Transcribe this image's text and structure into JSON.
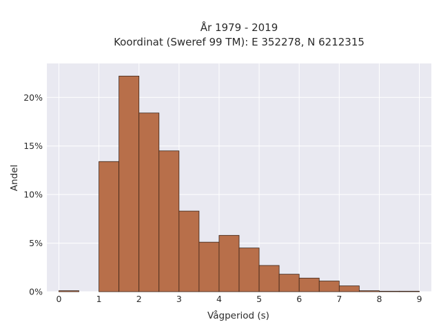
{
  "chart_data": {
    "type": "bar",
    "title_line1": "År 1979 - 2019",
    "title_line2": "Koordinat (Sweref 99 TM): E 352278, N 6212315",
    "xlabel": "Vågperiod (s)",
    "ylabel": "Andel",
    "xlim": [
      -0.3,
      9.3
    ],
    "ylim": [
      0,
      23.5
    ],
    "x_ticks": [
      0,
      1,
      2,
      3,
      4,
      5,
      6,
      7,
      8,
      9
    ],
    "x_tick_labels": [
      "0",
      "1",
      "2",
      "3",
      "4",
      "5",
      "6",
      "7",
      "8",
      "9"
    ],
    "y_ticks": [
      0,
      5,
      10,
      15,
      20
    ],
    "y_tick_labels": [
      "0%",
      "5%",
      "10%",
      "15%",
      "20%"
    ],
    "grid": true,
    "bar_color": "#b86f4a",
    "background_color": "#e9e9f1",
    "bins": [
      {
        "x0": 0.0,
        "x1": 0.5,
        "value": 0.1
      },
      {
        "x0": 1.0,
        "x1": 1.5,
        "value": 13.4
      },
      {
        "x0": 1.5,
        "x1": 2.0,
        "value": 22.2
      },
      {
        "x0": 2.0,
        "x1": 2.5,
        "value": 18.4
      },
      {
        "x0": 2.5,
        "x1": 3.0,
        "value": 14.5
      },
      {
        "x0": 3.0,
        "x1": 3.5,
        "value": 8.3
      },
      {
        "x0": 3.5,
        "x1": 4.0,
        "value": 5.1
      },
      {
        "x0": 4.0,
        "x1": 4.5,
        "value": 5.8
      },
      {
        "x0": 4.5,
        "x1": 5.0,
        "value": 4.5
      },
      {
        "x0": 5.0,
        "x1": 5.5,
        "value": 2.7
      },
      {
        "x0": 5.5,
        "x1": 6.0,
        "value": 1.8
      },
      {
        "x0": 6.0,
        "x1": 6.5,
        "value": 1.4
      },
      {
        "x0": 6.5,
        "x1": 7.0,
        "value": 1.1
      },
      {
        "x0": 7.0,
        "x1": 7.5,
        "value": 0.6
      },
      {
        "x0": 7.5,
        "x1": 8.0,
        "value": 0.1
      },
      {
        "x0": 8.0,
        "x1": 8.5,
        "value": 0.05
      },
      {
        "x0": 8.5,
        "x1": 9.0,
        "value": 0.05
      }
    ]
  }
}
